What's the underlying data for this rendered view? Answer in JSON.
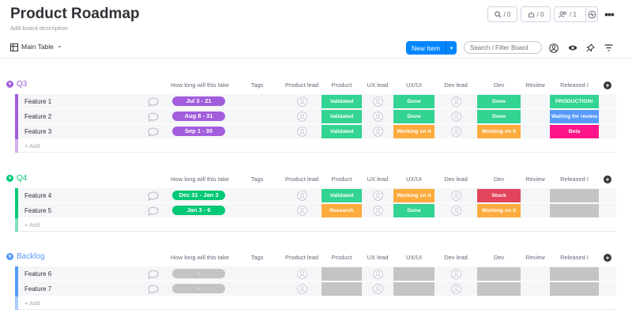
{
  "board": {
    "title": "Product Roadmap",
    "description": "Add board description",
    "activity_count": "/ 0",
    "integrations_count": "/ 0",
    "members_count": "/ 1"
  },
  "toolbar": {
    "view_name": "Main Table",
    "new_item_label": "New Item",
    "search_placeholder": "Search / Filter Board"
  },
  "columns": [
    "How long will this take",
    "Tags",
    "Product lead",
    "Product",
    "UX lead",
    "UX/UI",
    "Dev lead",
    "Dev",
    "Review",
    "Released I"
  ],
  "add_item_label": "+ Add",
  "colors": {
    "q3": "#a25ddc",
    "q4": "#00c875",
    "backlog": "#579bfc",
    "done": "#33d391",
    "validated": "#33d391",
    "working": "#fdab3d",
    "research": "#fdab3d",
    "stuck": "#e2445c",
    "production": "#33d391",
    "waiting": "#579bfc",
    "beta": "#ff158a",
    "empty": "#c4c4c4",
    "accent": "#0085ff"
  },
  "groups": [
    {
      "name": "Q3",
      "rows": [
        {
          "name": "Feature 1",
          "timeline": "Jul 3 - 21",
          "product": "Validated",
          "uxui": "Done",
          "dev": "Done",
          "released": "PRODUCTION!"
        },
        {
          "name": "Feature 2",
          "timeline": "Aug 8 - 31",
          "product": "Validated",
          "uxui": "Done",
          "dev": "Done",
          "released": "Waiting for review"
        },
        {
          "name": "Feature 3",
          "timeline": "Sep 1 - 30",
          "product": "Validated",
          "uxui": "Working on it",
          "dev": "Working on it",
          "released": "Beta"
        }
      ]
    },
    {
      "name": "Q4",
      "rows": [
        {
          "name": "Feature 4",
          "timeline": "Dec 31 - Jan 3",
          "product": "Validated",
          "uxui": "Working on it",
          "dev": "Stuck",
          "released": ""
        },
        {
          "name": "Feature 5",
          "timeline": "Jan 3 - 6",
          "product": "Research",
          "uxui": "Done",
          "dev": "Working on it",
          "released": ""
        }
      ]
    },
    {
      "name": "Backlog",
      "rows": [
        {
          "name": "Feature 6",
          "timeline": "-",
          "product": "",
          "uxui": "",
          "dev": "",
          "released": ""
        },
        {
          "name": "Feature 7",
          "timeline": "-",
          "product": "",
          "uxui": "",
          "dev": "",
          "released": ""
        }
      ]
    }
  ]
}
